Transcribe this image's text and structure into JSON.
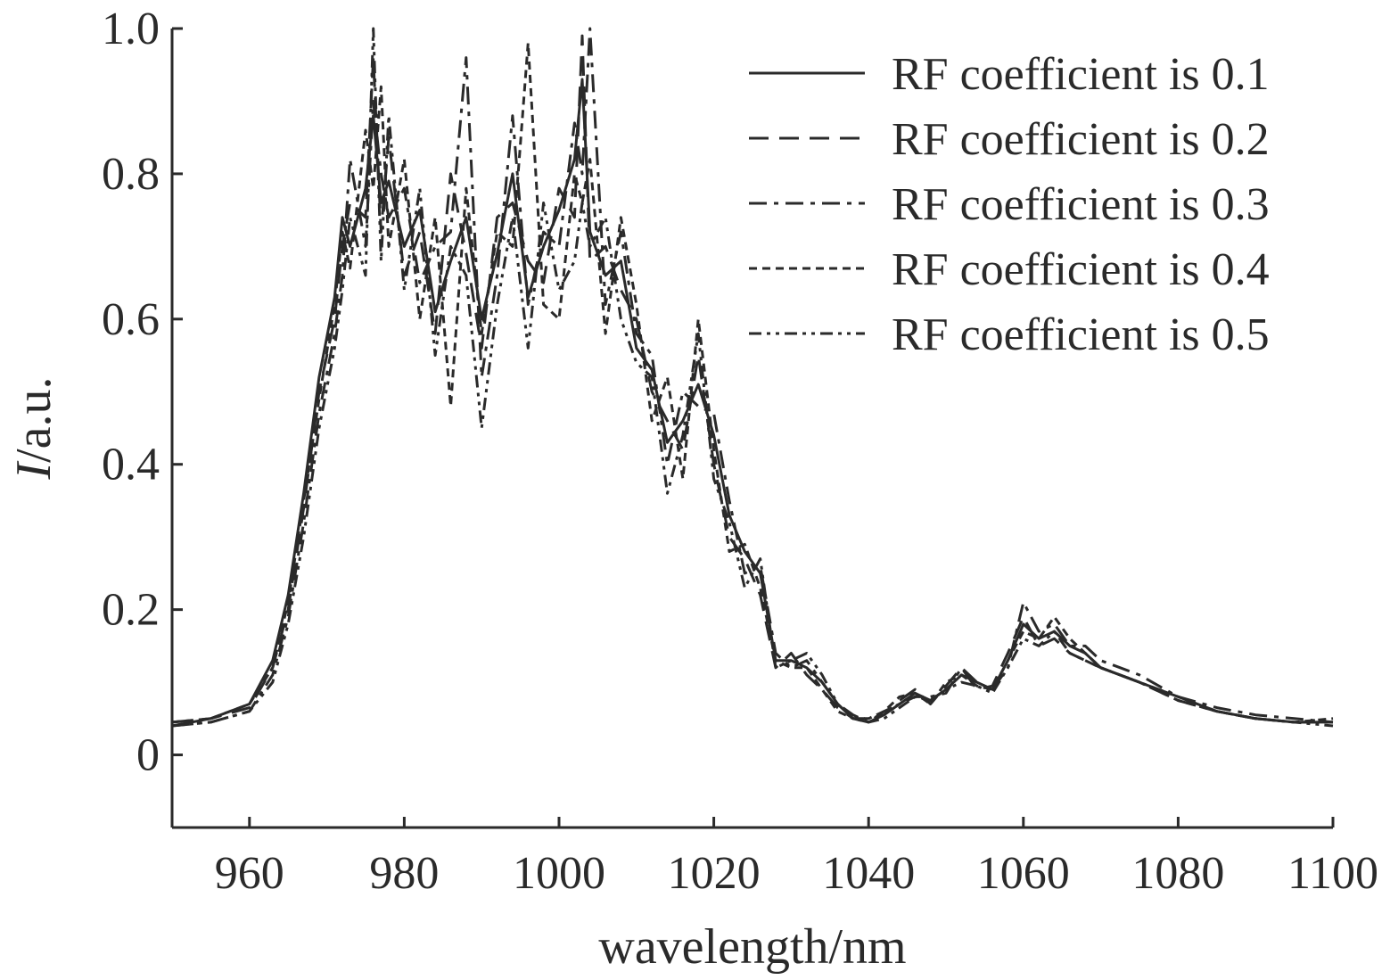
{
  "chart_data": {
    "type": "line",
    "xlabel": "wavelength/nm",
    "ylabel_italic": "I",
    "ylabel_rest": "/a.u.",
    "xlim": [
      950,
      1100
    ],
    "ylim": [
      -0.1,
      1.0
    ],
    "x_ticks": [
      960,
      980,
      1000,
      1020,
      1040,
      1060,
      1080,
      1100
    ],
    "y_ticks": [
      0,
      0.2,
      0.4,
      0.6,
      0.8,
      1.0
    ],
    "y_tick_labels": [
      "0",
      "0.2",
      "0.4",
      "0.6",
      "0.8",
      "1.0"
    ],
    "grid": false,
    "legend_position": "top-right",
    "line_color": "#2a2a2a",
    "series": [
      {
        "name": "RF coefficient is 0.1",
        "dash": "solid",
        "x": [
          950,
          955,
          960,
          963,
          965,
          967,
          969,
          971,
          972,
          973,
          975,
          976,
          977,
          978,
          980,
          982,
          984,
          986,
          988,
          990,
          992,
          994,
          996,
          998,
          1000,
          1002,
          1003,
          1004,
          1006,
          1008,
          1010,
          1012,
          1014,
          1016,
          1018,
          1020,
          1022,
          1024,
          1026,
          1028,
          1030,
          1032,
          1034,
          1036,
          1038,
          1040,
          1042,
          1044,
          1046,
          1048,
          1050,
          1052,
          1054,
          1056,
          1058,
          1060,
          1062,
          1064,
          1066,
          1068,
          1070,
          1075,
          1080,
          1085,
          1090,
          1095,
          1100
        ],
        "y": [
          0.04,
          0.05,
          0.07,
          0.13,
          0.22,
          0.36,
          0.52,
          0.63,
          0.74,
          0.7,
          0.78,
          0.88,
          0.76,
          0.79,
          0.7,
          0.75,
          0.61,
          0.68,
          0.74,
          0.6,
          0.69,
          0.8,
          0.63,
          0.7,
          0.75,
          0.82,
          0.93,
          0.72,
          0.66,
          0.68,
          0.56,
          0.53,
          0.43,
          0.46,
          0.51,
          0.44,
          0.33,
          0.28,
          0.25,
          0.13,
          0.13,
          0.12,
          0.1,
          0.07,
          0.05,
          0.045,
          0.055,
          0.07,
          0.085,
          0.075,
          0.09,
          0.11,
          0.1,
          0.09,
          0.13,
          0.18,
          0.16,
          0.17,
          0.15,
          0.14,
          0.12,
          0.1,
          0.08,
          0.06,
          0.05,
          0.045,
          0.045
        ]
      },
      {
        "name": "RF coefficient is 0.2",
        "dash": "long-dash",
        "x": [
          950,
          955,
          960,
          963,
          965,
          967,
          969,
          971,
          972,
          973,
          975,
          976,
          977,
          978,
          980,
          982,
          984,
          986,
          988,
          990,
          992,
          994,
          996,
          998,
          1000,
          1002,
          1003,
          1004,
          1006,
          1008,
          1010,
          1012,
          1014,
          1016,
          1018,
          1020,
          1022,
          1024,
          1026,
          1028,
          1030,
          1032,
          1034,
          1036,
          1038,
          1040,
          1042,
          1044,
          1046,
          1048,
          1050,
          1052,
          1054,
          1056,
          1058,
          1060,
          1062,
          1064,
          1066,
          1068,
          1070,
          1075,
          1080,
          1085,
          1090,
          1095,
          1100
        ],
        "y": [
          0.045,
          0.05,
          0.065,
          0.12,
          0.2,
          0.34,
          0.5,
          0.6,
          0.7,
          0.76,
          0.74,
          0.96,
          0.72,
          0.85,
          0.66,
          0.72,
          0.58,
          0.8,
          0.69,
          0.56,
          0.74,
          0.76,
          0.68,
          0.65,
          0.78,
          0.74,
          0.99,
          0.68,
          0.7,
          0.64,
          0.6,
          0.5,
          0.46,
          0.42,
          0.55,
          0.4,
          0.3,
          0.27,
          0.22,
          0.12,
          0.14,
          0.11,
          0.09,
          0.065,
          0.05,
          0.05,
          0.055,
          0.075,
          0.09,
          0.07,
          0.095,
          0.12,
          0.09,
          0.095,
          0.14,
          0.19,
          0.15,
          0.16,
          0.14,
          0.13,
          0.12,
          0.1,
          0.075,
          0.06,
          0.05,
          0.045,
          0.045
        ]
      },
      {
        "name": "RF coefficient is 0.3",
        "dash": "dash-dot",
        "x": [
          950,
          955,
          960,
          963,
          965,
          967,
          969,
          971,
          972,
          973,
          975,
          976,
          977,
          978,
          980,
          982,
          984,
          986,
          988,
          990,
          992,
          994,
          996,
          998,
          1000,
          1002,
          1003,
          1004,
          1006,
          1008,
          1010,
          1012,
          1014,
          1016,
          1018,
          1020,
          1022,
          1024,
          1026,
          1028,
          1030,
          1032,
          1034,
          1036,
          1038,
          1040,
          1042,
          1044,
          1046,
          1048,
          1050,
          1052,
          1054,
          1056,
          1058,
          1060,
          1062,
          1064,
          1066,
          1068,
          1070,
          1075,
          1080,
          1085,
          1090,
          1095,
          1100
        ],
        "y": [
          0.04,
          0.045,
          0.06,
          0.11,
          0.19,
          0.32,
          0.47,
          0.58,
          0.66,
          0.82,
          0.7,
          0.9,
          0.8,
          0.74,
          0.78,
          0.65,
          0.7,
          0.72,
          0.96,
          0.52,
          0.66,
          0.88,
          0.62,
          0.72,
          0.7,
          0.87,
          0.8,
          1.0,
          0.62,
          0.72,
          0.58,
          0.55,
          0.4,
          0.5,
          0.48,
          0.47,
          0.35,
          0.25,
          0.26,
          0.14,
          0.12,
          0.13,
          0.1,
          0.07,
          0.055,
          0.045,
          0.06,
          0.07,
          0.08,
          0.08,
          0.085,
          0.12,
          0.1,
          0.09,
          0.12,
          0.21,
          0.17,
          0.18,
          0.15,
          0.15,
          0.13,
          0.11,
          0.08,
          0.065,
          0.055,
          0.05,
          0.045
        ]
      },
      {
        "name": "RF coefficient is 0.4",
        "dash": "short-dash",
        "x": [
          950,
          955,
          960,
          963,
          965,
          967,
          969,
          971,
          972,
          973,
          975,
          976,
          977,
          978,
          980,
          982,
          984,
          986,
          988,
          990,
          992,
          994,
          996,
          998,
          1000,
          1002,
          1003,
          1004,
          1006,
          1008,
          1010,
          1012,
          1014,
          1016,
          1018,
          1020,
          1022,
          1024,
          1026,
          1028,
          1030,
          1032,
          1034,
          1036,
          1038,
          1040,
          1042,
          1044,
          1046,
          1048,
          1050,
          1052,
          1054,
          1056,
          1058,
          1060,
          1062,
          1064,
          1066,
          1068,
          1070,
          1075,
          1080,
          1085,
          1090,
          1095,
          1100
        ],
        "y": [
          0.045,
          0.05,
          0.07,
          0.12,
          0.21,
          0.35,
          0.49,
          0.62,
          0.72,
          0.67,
          0.86,
          0.78,
          0.92,
          0.7,
          0.82,
          0.6,
          0.74,
          0.48,
          0.78,
          0.58,
          0.72,
          0.7,
          0.98,
          0.62,
          0.6,
          0.8,
          0.76,
          0.82,
          0.58,
          0.74,
          0.62,
          0.46,
          0.52,
          0.38,
          0.6,
          0.42,
          0.28,
          0.29,
          0.23,
          0.13,
          0.12,
          0.12,
          0.09,
          0.06,
          0.05,
          0.05,
          0.06,
          0.08,
          0.085,
          0.07,
          0.1,
          0.11,
          0.095,
          0.09,
          0.13,
          0.17,
          0.16,
          0.19,
          0.16,
          0.14,
          0.12,
          0.1,
          0.075,
          0.06,
          0.05,
          0.045,
          0.05
        ]
      },
      {
        "name": "RF coefficient is 0.5",
        "dash": "dash-dot-dot",
        "x": [
          950,
          955,
          960,
          963,
          965,
          967,
          969,
          971,
          972,
          973,
          975,
          976,
          977,
          978,
          980,
          982,
          984,
          986,
          988,
          990,
          992,
          994,
          996,
          998,
          1000,
          1002,
          1003,
          1004,
          1006,
          1008,
          1010,
          1012,
          1014,
          1016,
          1018,
          1020,
          1022,
          1024,
          1026,
          1028,
          1030,
          1032,
          1034,
          1036,
          1038,
          1040,
          1042,
          1044,
          1046,
          1048,
          1050,
          1052,
          1054,
          1056,
          1058,
          1060,
          1062,
          1064,
          1066,
          1068,
          1070,
          1075,
          1080,
          1085,
          1090,
          1095,
          1100
        ],
        "y": [
          0.04,
          0.045,
          0.06,
          0.1,
          0.18,
          0.3,
          0.45,
          0.56,
          0.64,
          0.74,
          0.66,
          1.0,
          0.68,
          0.88,
          0.64,
          0.78,
          0.55,
          0.7,
          0.66,
          0.45,
          0.62,
          0.74,
          0.56,
          0.76,
          0.64,
          0.68,
          0.76,
          0.7,
          0.74,
          0.6,
          0.54,
          0.52,
          0.36,
          0.44,
          0.58,
          0.38,
          0.32,
          0.23,
          0.27,
          0.12,
          0.13,
          0.14,
          0.11,
          0.07,
          0.05,
          0.045,
          0.05,
          0.065,
          0.08,
          0.075,
          0.09,
          0.1,
          0.095,
          0.085,
          0.12,
          0.16,
          0.15,
          0.17,
          0.14,
          0.13,
          0.12,
          0.1,
          0.08,
          0.06,
          0.05,
          0.045,
          0.04
        ]
      }
    ]
  }
}
